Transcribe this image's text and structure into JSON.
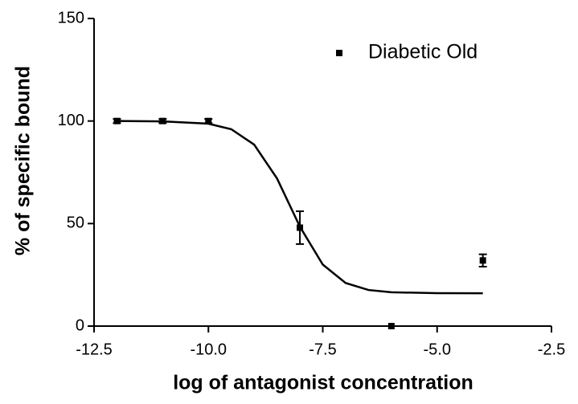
{
  "chart_data": {
    "type": "scatter",
    "xlabel": "log of antagonist concentration",
    "ylabel": "% of specific bound",
    "xlim": [
      -12.5,
      -2.5
    ],
    "xticks": [
      {
        "value": -12.5,
        "label": "-12.5"
      },
      {
        "value": -10,
        "label": "-10.0"
      },
      -7.5,
      {
        "value": -5,
        "label": "-5.0"
      },
      -2.5
    ],
    "ylim": [
      0,
      150
    ],
    "yticks": [
      0,
      50,
      100,
      150
    ],
    "series": [
      {
        "name": "Diabetic Old",
        "color": "#000000",
        "x": [
          -12,
          -11,
          -10,
          -8,
          -6,
          -4
        ],
        "values": [
          100,
          100,
          100,
          48,
          0,
          32
        ],
        "errors": [
          1,
          1,
          1,
          8,
          0,
          3
        ]
      }
    ],
    "fit": {
      "color": "#000000",
      "x": [
        -12,
        -11,
        -10,
        -9.5,
        -9,
        -8.5,
        -8,
        -7.5,
        -7,
        -6.5,
        -6,
        -5,
        -4
      ],
      "values": [
        100,
        99.8,
        98.7,
        96,
        88.5,
        72,
        48.5,
        30,
        21,
        17.6,
        16.5,
        16.05,
        16
      ]
    },
    "legend": "upper right"
  }
}
